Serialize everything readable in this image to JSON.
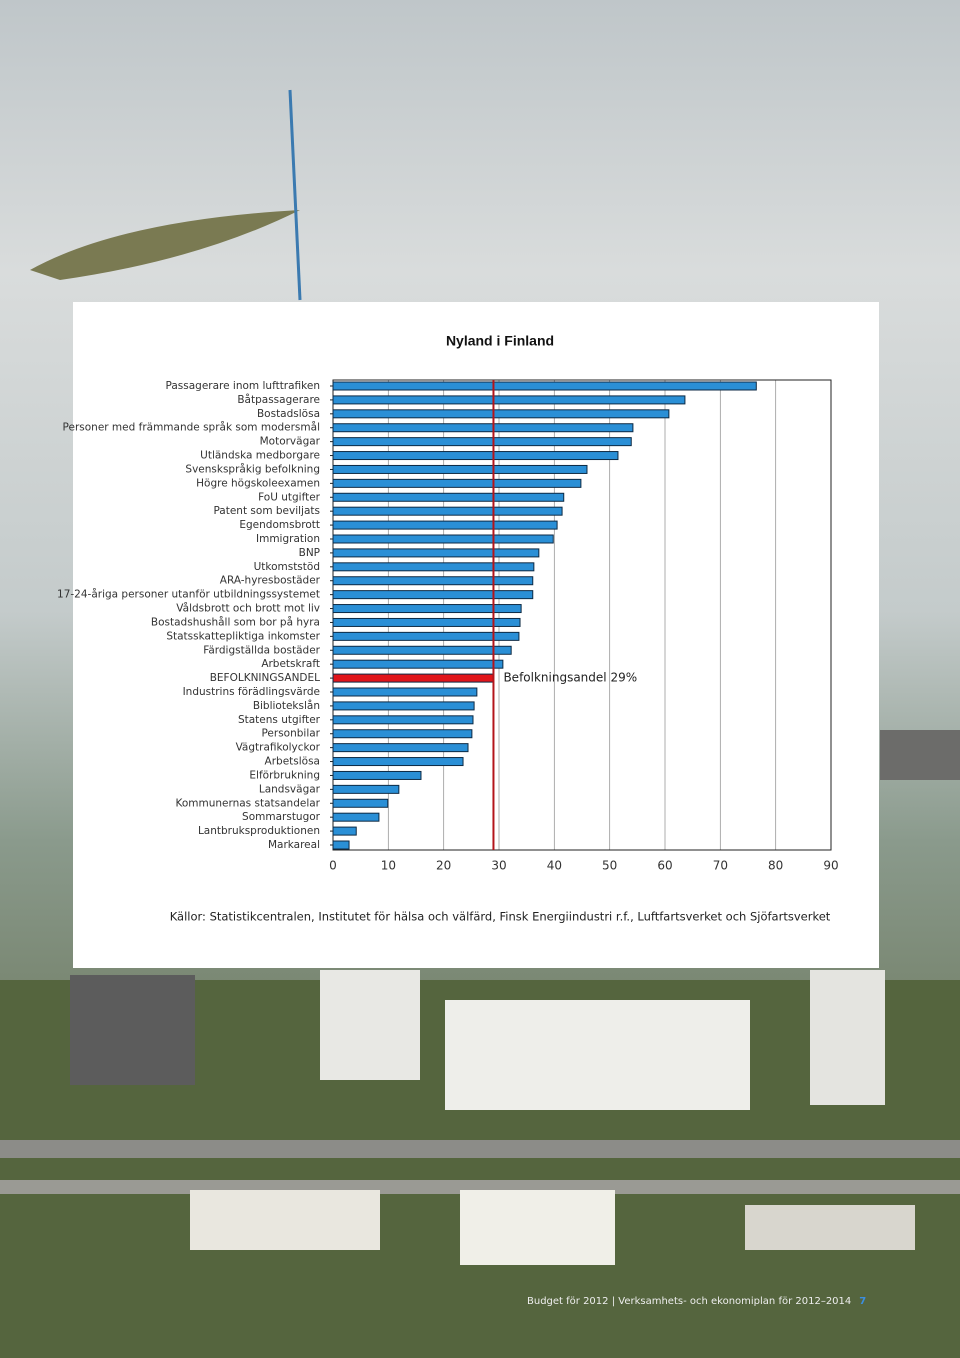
{
  "chart_data": {
    "type": "hbar",
    "title": "Nyland i Finland",
    "categories": [
      "Passagerare inom lufttrafiken",
      "Båtpassagerare",
      "Bostadslösa",
      "Personer med främmande språk som modersmål",
      "Motorvägar",
      "Utländska medborgare",
      "Svenskspråkig befolkning",
      "Högre högskoleexamen",
      "FoU utgifter",
      "Patent som beviljats",
      "Egendomsbrott",
      "Immigration",
      "BNP",
      "Utkomststöd",
      "ARA-hyresbostäder",
      "17-24-åriga personer utanför utbildningssystemet",
      "Våldsbrott och brott mot liv",
      "Bostadshushåll som bor på hyra",
      "Statsskattepliktiga inkomster",
      "Färdigställda bostäder",
      "Arbetskraft",
      "BEFOLKNINGSANDEL",
      "Industrins förädlingsvärde",
      "Bibliotekslån",
      "Statens utgifter",
      "Personbilar",
      "Vägtrafikolyckor",
      "Arbetslösa",
      "Elförbrukning",
      "Landsvägar",
      "Kommunernas statsandelar",
      "Sommarstugor",
      "Lantbruksproduktionen",
      "Markareal"
    ],
    "values": [
      76.5,
      63.6,
      60.7,
      54.2,
      53.9,
      51.5,
      45.9,
      44.8,
      41.7,
      41.4,
      40.5,
      39.8,
      37.2,
      36.3,
      36.1,
      36.1,
      34,
      33.8,
      33.6,
      32.2,
      30.7,
      29,
      26,
      25.5,
      25.3,
      25.1,
      24.4,
      23.5,
      15.9,
      11.9,
      9.9,
      8.3,
      4.2,
      2.9
    ],
    "colors": [
      "#2a8fd6",
      "#2a8fd6",
      "#2a8fd6",
      "#2a8fd6",
      "#2a8fd6",
      "#2a8fd6",
      "#2a8fd6",
      "#2a8fd6",
      "#2a8fd6",
      "#2a8fd6",
      "#2a8fd6",
      "#2a8fd6",
      "#2a8fd6",
      "#2a8fd6",
      "#2a8fd6",
      "#2a8fd6",
      "#2a8fd6",
      "#2a8fd6",
      "#2a8fd6",
      "#2a8fd6",
      "#2a8fd6",
      "#e0151b",
      "#2a8fd6",
      "#2a8fd6",
      "#2a8fd6",
      "#2a8fd6",
      "#2a8fd6",
      "#2a8fd6",
      "#2a8fd6",
      "#2a8fd6",
      "#2a8fd6",
      "#2a8fd6",
      "#2a8fd6",
      "#2a8fd6"
    ],
    "xlim": [
      0,
      90
    ],
    "xticks": [
      0,
      10,
      20,
      30,
      40,
      50,
      60,
      70,
      80,
      90
    ],
    "grid": true,
    "reference_line": {
      "value": 29,
      "label": "Befolkningsandel 29%",
      "color": "#b3151b"
    },
    "source": "Källor: Statistikcentralen, Institutet för hälsa och välfärd, Finsk Energiindustri r.f., Luftfartsverket och Sjöfartsverket"
  },
  "footer": {
    "text": "Budget för 2012 | Verksamhets- och ekonomiplan för 2012–2014",
    "page_number": "7"
  }
}
